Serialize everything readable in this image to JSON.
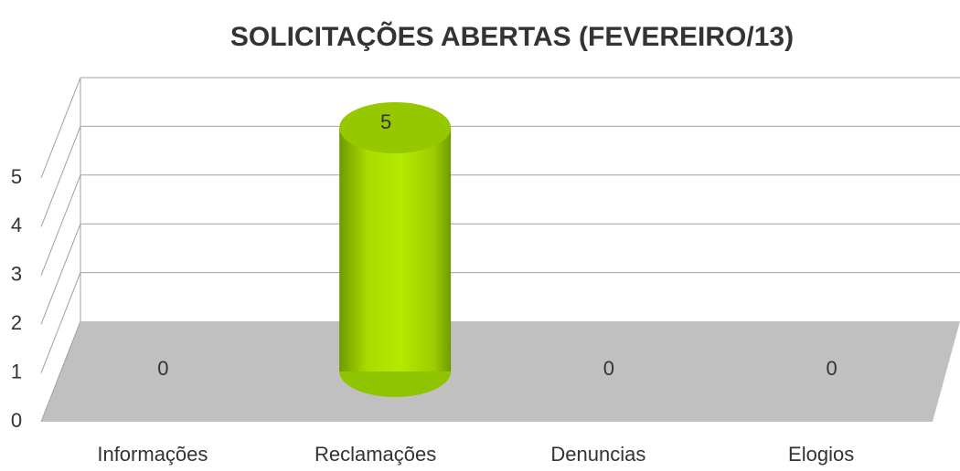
{
  "chart_data": {
    "type": "bar3d",
    "title": "SOLICITAÇÕES ABERTAS (FEVEREIRO/13)",
    "categories": [
      "Informações",
      "Reclamações",
      "Denuncias",
      "Elogios"
    ],
    "values": [
      0,
      5,
      0,
      0
    ],
    "color": "#9fd800",
    "ylim": [
      0,
      5
    ],
    "yticks": [
      0,
      1,
      2,
      3,
      4,
      5
    ],
    "grid": true
  }
}
